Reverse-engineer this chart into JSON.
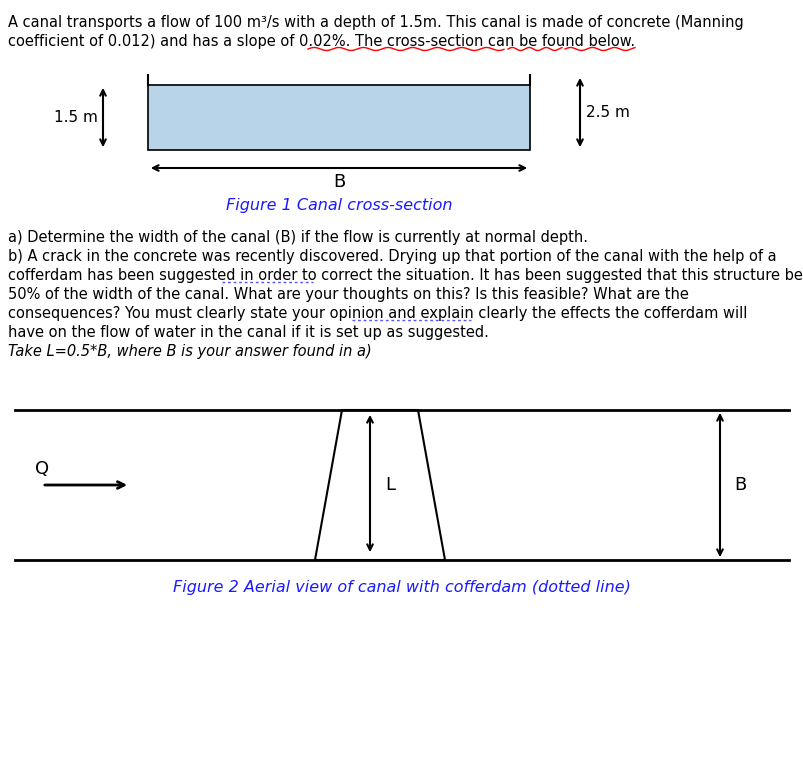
{
  "fig1_caption": "Figure 1 Canal cross-section",
  "fig2_caption": "Figure 2 Aerial view of canal with cofferdam (dotted line)",
  "label_B": "B",
  "label_15m": "1.5 m",
  "label_25m": "2.5 m",
  "label_Q": "Q",
  "label_L": "L",
  "label_B2": "B",
  "rect_color": "#b8d4e8",
  "text_color_blue": "#1a1aff",
  "para_a": "a) Determine the width of the canal (B) if the flow is currently at normal depth.",
  "para_b1": "b) A crack in the concrete was recently discovered. Drying up that portion of the canal with the help of a",
  "para_b2": "cofferdam has been suggested in order to correct the situation. It has been suggested that this structure be",
  "para_b3": "50% of the width of the canal. What are your thoughts on this? Is this feasible? What are the",
  "para_b4": "consequences? You must clearly state your opinion and explain clearly the effects the cofferdam will",
  "para_b5": "have on the flow of water in the canal if it is set up as suggested.",
  "para_b6": "Take L=0.5*B, where B is your answer found in a)",
  "title_line1": "A canal transports a flow of 100 m³/s with a depth of 1.5m. This canal is made of concrete (Manning",
  "title_line2": "coefficient of 0.012) and has a slope of 0.02%. The cross-section can be found below."
}
